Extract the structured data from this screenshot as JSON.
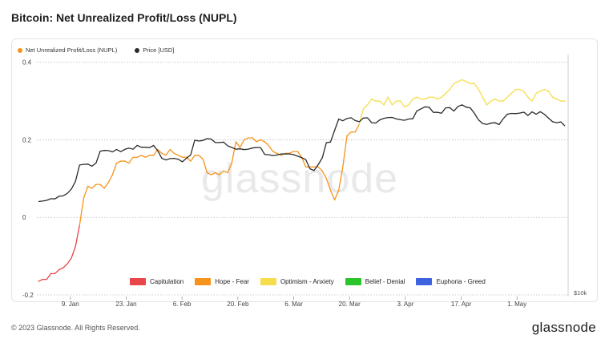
{
  "title": "Bitcoin: Net Unrealized Profit/Loss (NUPL)",
  "legend": [
    {
      "label": "Net Unrealized Profit/Loss (NUPL)",
      "color": "#f7931a"
    },
    {
      "label": "Price [USD]",
      "color": "#2b2b2b"
    }
  ],
  "zones": [
    {
      "label": "Capitulation",
      "color": "#e8464a"
    },
    {
      "label": "Hope - Fear",
      "color": "#f7931a"
    },
    {
      "label": "Optimism - Anxiety",
      "color": "#f5dd4d"
    },
    {
      "label": "Belief - Denial",
      "color": "#2bc42b"
    },
    {
      "label": "Euphoria - Greed",
      "color": "#3e63e0"
    }
  ],
  "watermark": "glassnode",
  "right_axis_label": "$10k",
  "footer": {
    "copyright": "© 2023 Glassnode. All Rights Reserved.",
    "brand": "glassnode"
  },
  "chart_data": {
    "type": "line",
    "title": "Bitcoin: Net Unrealized Profit/Loss (NUPL)",
    "x_ticks": [
      "9. Jan",
      "23. Jan",
      "6. Feb",
      "20. Feb",
      "6. Mar",
      "20. Mar",
      "3. Apr",
      "17. Apr",
      "1. May"
    ],
    "y_ticks": [
      "-0.2",
      "0",
      "0.2",
      "0.4"
    ],
    "ylim": [
      -0.2,
      0.42
    ],
    "x_start": "2023-01-01",
    "x_end": "2023-05-13",
    "grid": "horizontal dotted",
    "series": [
      {
        "name": "Net Unrealized Profit/Loss (NUPL)",
        "color_by_zone": true,
        "values": [
          -0.165,
          -0.16,
          -0.16,
          -0.145,
          -0.145,
          -0.135,
          -0.13,
          -0.12,
          -0.105,
          -0.075,
          -0.02,
          0.05,
          0.08,
          0.075,
          0.085,
          0.085,
          0.075,
          0.09,
          0.11,
          0.14,
          0.145,
          0.145,
          0.14,
          0.155,
          0.155,
          0.16,
          0.155,
          0.16,
          0.16,
          0.175,
          0.165,
          0.16,
          0.175,
          0.165,
          0.16,
          0.155,
          0.155,
          0.145,
          0.16,
          0.16,
          0.15,
          0.115,
          0.11,
          0.115,
          0.11,
          0.12,
          0.115,
          0.14,
          0.195,
          0.18,
          0.2,
          0.205,
          0.205,
          0.195,
          0.2,
          0.195,
          0.185,
          0.17,
          0.165,
          0.16,
          0.165,
          0.165,
          0.17,
          0.17,
          0.155,
          0.13,
          0.13,
          0.13,
          0.13,
          0.12,
          0.1,
          0.07,
          0.045,
          0.07,
          0.13,
          0.21,
          0.22,
          0.22,
          0.24,
          0.28,
          0.29,
          0.305,
          0.3,
          0.3,
          0.29,
          0.31,
          0.29,
          0.3,
          0.3,
          0.285,
          0.29,
          0.305,
          0.31,
          0.305,
          0.305,
          0.31,
          0.31,
          0.305,
          0.31,
          0.32,
          0.33,
          0.345,
          0.35,
          0.355,
          0.35,
          0.345,
          0.345,
          0.33,
          0.31,
          0.29,
          0.3,
          0.305,
          0.3,
          0.3,
          0.31,
          0.32,
          0.33,
          0.33,
          0.325,
          0.31,
          0.3,
          0.32,
          0.325,
          0.33,
          0.325,
          0.31,
          0.305,
          0.3,
          0.3
        ]
      },
      {
        "name": "Price [USD]",
        "color": "#2b2b2b",
        "scale": "log",
        "values": [
          16550,
          16600,
          16680,
          16860,
          16830,
          17120,
          17170,
          17430,
          17940,
          18850,
          20950,
          21030,
          21070,
          20780,
          21220,
          22890,
          23020,
          22990,
          22800,
          23160,
          22820,
          23170,
          23360,
          23190,
          23780,
          23500,
          23480,
          23430,
          23760,
          22960,
          21860,
          21640,
          21830,
          21860,
          21740,
          21380,
          21890,
          22350,
          24580,
          24450,
          24550,
          24850,
          24760,
          24210,
          24210,
          24290,
          23700,
          23460,
          23190,
          23250,
          23130,
          23200,
          23370,
          23460,
          23440,
          22440,
          22380,
          22260,
          22350,
          22500,
          22510,
          22500,
          22400,
          22170,
          21970,
          21690,
          20440,
          20220,
          20980,
          21930,
          24200,
          24290,
          26210,
          28170,
          27870,
          28280,
          28420,
          27910,
          27690,
          28360,
          28400,
          27520,
          27460,
          28020,
          28320,
          28460,
          28480,
          28200,
          28060,
          27950,
          28180,
          28230,
          29680,
          30100,
          30490,
          30390,
          29420,
          29440,
          29250,
          30290,
          30340,
          29670,
          30550,
          30890,
          30420,
          30280,
          29220,
          28020,
          27380,
          27230,
          27440,
          27530,
          27200,
          28240,
          29080,
          29230,
          29180,
          29290,
          29450,
          28830,
          29520,
          29080,
          29550,
          29080,
          28350,
          27700,
          27520,
          27660,
          26950
        ]
      }
    ]
  }
}
